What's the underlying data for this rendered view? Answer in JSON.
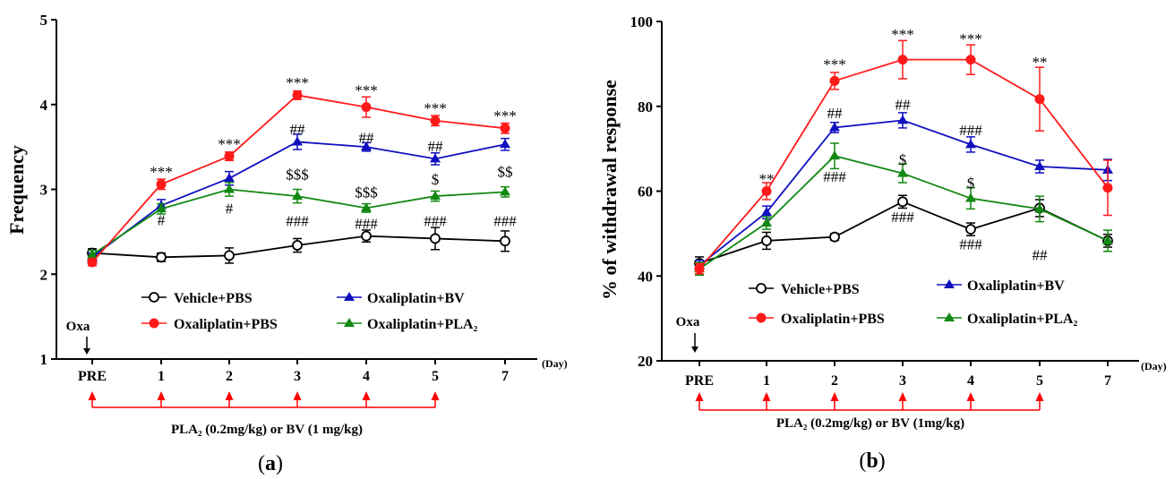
{
  "colors": {
    "vehicle": "#000000",
    "oxaliplatin_pbs": "#ff1a1a",
    "oxaliplatin_bv": "#1010c0",
    "oxaliplatin_pla2": "#118811",
    "arrow": "#ff0000",
    "axis": "#000000"
  },
  "chart_data": [
    {
      "type": "line",
      "panel_label": "a",
      "ylabel": "Frequency",
      "x_unit": "(Day)",
      "categories": [
        "PRE",
        "1",
        "2",
        "3",
        "4",
        "5",
        "7"
      ],
      "ylim": [
        1,
        5
      ],
      "yticks": [
        "1",
        "2",
        "3",
        "4",
        "5"
      ],
      "oxa_label": "Oxa",
      "treatment_label": "PLA₂ (0.2mg/kg) or BV (1 mg/kg)",
      "treatment_days": [
        "PRE",
        "1",
        "2",
        "3",
        "4",
        "5"
      ],
      "series": [
        {
          "name": "Vehicle+PBS",
          "key": "vehicle",
          "marker": "circle-open",
          "values": [
            2.25,
            2.2,
            2.22,
            2.34,
            2.45,
            2.42,
            2.39
          ],
          "errors": [
            0.05,
            0.05,
            0.09,
            0.08,
            0.07,
            0.13,
            0.12
          ]
        },
        {
          "name": "Oxaliplatin+PBS",
          "key": "oxaliplatin_pbs",
          "marker": "circle",
          "values": [
            2.14,
            3.06,
            3.39,
            4.11,
            3.97,
            3.81,
            3.72
          ],
          "errors": [
            0.04,
            0.06,
            0.05,
            0.05,
            0.12,
            0.06,
            0.06
          ]
        },
        {
          "name": "Oxaliplatin+BV",
          "key": "oxaliplatin_bv",
          "marker": "triangle",
          "values": [
            2.2,
            2.81,
            3.13,
            3.56,
            3.5,
            3.36,
            3.53
          ],
          "errors": [
            0.05,
            0.07,
            0.08,
            0.09,
            0.05,
            0.07,
            0.07
          ]
        },
        {
          "name": "Oxaliplatin+PLA₂",
          "key": "oxaliplatin_pla2",
          "marker": "triangle",
          "values": [
            2.23,
            2.77,
            3.0,
            2.92,
            2.78,
            2.92,
            2.97
          ],
          "errors": [
            0.05,
            0.06,
            0.08,
            0.08,
            0.05,
            0.06,
            0.06
          ]
        }
      ],
      "annotations": [
        {
          "x": "1",
          "y": 3.21,
          "text": "***"
        },
        {
          "x": "2",
          "y": 3.54,
          "text": "***"
        },
        {
          "x": "3",
          "y": 4.26,
          "text": "***"
        },
        {
          "x": "4",
          "y": 4.17,
          "text": "***"
        },
        {
          "x": "5",
          "y": 3.96,
          "text": "***"
        },
        {
          "x": "7",
          "y": 3.87,
          "text": "***"
        },
        {
          "x": "1",
          "y": 2.64,
          "text": "#"
        },
        {
          "x": "2",
          "y": 2.78,
          "text": "#"
        },
        {
          "x": "3",
          "y": 3.71,
          "text": "##"
        },
        {
          "x": "4",
          "y": 3.61,
          "text": "##"
        },
        {
          "x": "5",
          "y": 3.51,
          "text": "##"
        },
        {
          "x": "7",
          "y": 3.21,
          "text": "$$"
        },
        {
          "x": "3",
          "y": 3.18,
          "text": "$$$"
        },
        {
          "x": "4",
          "y": 2.97,
          "text": "$$$"
        },
        {
          "x": "5",
          "y": 3.12,
          "text": "$"
        },
        {
          "x": "3",
          "y": 2.63,
          "text": "###"
        },
        {
          "x": "4",
          "y": 2.6,
          "text": "###"
        },
        {
          "x": "5",
          "y": 2.63,
          "text": "###"
        },
        {
          "x": "7",
          "y": 2.63,
          "text": "###"
        }
      ]
    },
    {
      "type": "line",
      "panel_label": "b",
      "ylabel": "% of withdrawal response",
      "x_unit": "(Day)",
      "categories": [
        "PRE",
        "1",
        "2",
        "3",
        "4",
        "5",
        "7"
      ],
      "ylim": [
        20,
        100
      ],
      "yticks": [
        "20",
        "40",
        "60",
        "80",
        "100"
      ],
      "oxa_label": "Oxa",
      "treatment_label": "PLA₂ (0.2mg/kg) or BV (1mg/kg)",
      "treatment_days": [
        "PRE",
        "1",
        "2",
        "3",
        "4",
        "5"
      ],
      "series": [
        {
          "name": "Vehicle+PBS",
          "key": "vehicle",
          "marker": "circle-open",
          "values": [
            43,
            48.3,
            49.2,
            57.5,
            51,
            56,
            48.3
          ],
          "errors": [
            1.5,
            2.0,
            0.8,
            1.5,
            1.5,
            2.0,
            1.5
          ]
        },
        {
          "name": "Oxaliplatin+PBS",
          "key": "oxaliplatin_pbs",
          "marker": "circle",
          "values": [
            41.7,
            60,
            86,
            91,
            91,
            81.7,
            60.8
          ],
          "errors": [
            1.2,
            2.0,
            2.0,
            4.5,
            3.5,
            7.5,
            6.5
          ]
        },
        {
          "name": "Oxaliplatin+BV",
          "key": "oxaliplatin_bv",
          "marker": "triangle",
          "values": [
            42.5,
            55,
            75,
            76.7,
            71,
            65.8,
            65
          ],
          "errors": [
            1.2,
            1.5,
            1.2,
            1.8,
            1.8,
            1.5,
            2.5
          ]
        },
        {
          "name": "Oxaliplatin+PLA₂",
          "key": "oxaliplatin_pla2",
          "marker": "triangle",
          "values": [
            41.7,
            52.5,
            68.3,
            64.2,
            58.3,
            55.8,
            48.3
          ],
          "errors": [
            1.5,
            1.5,
            3.0,
            2.2,
            2.5,
            3.0,
            2.5
          ]
        }
      ],
      "annotations": [
        {
          "x": "1",
          "y": 63,
          "text": "**"
        },
        {
          "x": "2",
          "y": 90,
          "text": "***"
        },
        {
          "x": "3",
          "y": 97,
          "text": "***"
        },
        {
          "x": "4",
          "y": 96,
          "text": "***"
        },
        {
          "x": "5",
          "y": 90.5,
          "text": "**"
        },
        {
          "x": "2",
          "y": 78.5,
          "text": "##"
        },
        {
          "x": "3",
          "y": 80.5,
          "text": "##"
        },
        {
          "x": "4",
          "y": 74.5,
          "text": "###"
        },
        {
          "x": "3",
          "y": 67.5,
          "text": "$"
        },
        {
          "x": "4",
          "y": 62,
          "text": "$"
        },
        {
          "x": "2",
          "y": 63.5,
          "text": "###"
        },
        {
          "x": "3",
          "y": 54,
          "text": "###"
        },
        {
          "x": "4",
          "y": 47.5,
          "text": "###"
        },
        {
          "x": "5",
          "y": 45,
          "text": "##"
        }
      ]
    }
  ]
}
